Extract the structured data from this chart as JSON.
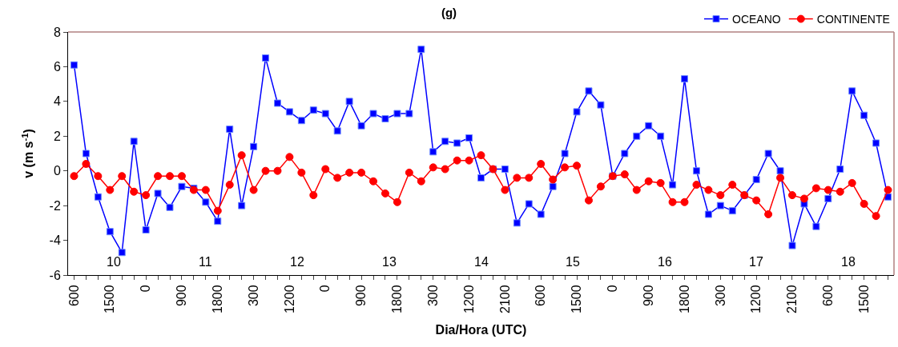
{
  "chart_data": {
    "type": "line",
    "title": "(g)",
    "xlabel": "Dia/Hora (UTC)",
    "ylabel": "v (m s$^{-1}$)",
    "categories": [
      "600",
      null,
      null,
      "1500",
      null,
      null,
      "0",
      null,
      null,
      "900",
      null,
      null,
      "1800",
      null,
      null,
      "300",
      null,
      null,
      "1200",
      null,
      null,
      "0",
      null,
      null,
      "900",
      null,
      null,
      "1800",
      null,
      null,
      "300",
      null,
      null,
      "1200",
      null,
      null,
      "2100",
      null,
      null,
      "600",
      null,
      null,
      "1500",
      null,
      null,
      "0",
      null,
      null,
      "900",
      null,
      null,
      "1800",
      null,
      null,
      "300",
      null,
      null,
      "1200",
      null,
      null,
      "2100",
      null,
      null,
      "600",
      null,
      null,
      "1500",
      null,
      null
    ],
    "series": [
      {
        "name": "OCEANO",
        "color": "#0000ff",
        "marker": "square",
        "values": [
          6.1,
          1.0,
          -1.5,
          -3.5,
          -4.7,
          1.7,
          -3.4,
          -1.3,
          -2.1,
          -0.9,
          -1.0,
          -1.8,
          -2.9,
          2.4,
          -2.0,
          1.4,
          6.5,
          3.9,
          3.4,
          2.9,
          3.5,
          3.3,
          2.3,
          4.0,
          2.6,
          3.3,
          3.0,
          3.3,
          3.3,
          7.0,
          1.1,
          1.7,
          1.6,
          1.9,
          -0.4,
          0.1,
          0.1,
          -3.0,
          -1.9,
          -2.5,
          -0.9,
          1.0,
          3.4,
          4.6,
          3.8,
          -0.3,
          1.0,
          2.0,
          2.6,
          2.0,
          -0.8,
          5.3,
          0.0,
          -2.5,
          -2.0,
          -2.3,
          -1.4,
          -0.5,
          1.0,
          0.0,
          -4.3,
          -1.9,
          -3.2,
          -1.6,
          0.1,
          4.6,
          3.2,
          1.6,
          -1.5
        ]
      },
      {
        "name": "CONTINENTE",
        "color": "#ff0000",
        "marker": "circle",
        "values": [
          -0.3,
          0.4,
          -0.3,
          -1.1,
          -0.3,
          -1.2,
          -1.4,
          -0.3,
          -0.3,
          -0.3,
          -1.1,
          -1.1,
          -2.3,
          -0.8,
          0.9,
          -1.1,
          0.0,
          0.0,
          0.8,
          -0.1,
          -1.4,
          0.1,
          -0.4,
          -0.1,
          -0.1,
          -0.6,
          -1.3,
          -1.8,
          -0.1,
          -0.6,
          0.2,
          0.1,
          0.6,
          0.6,
          0.9,
          0.1,
          -1.1,
          -0.4,
          -0.4,
          0.4,
          -0.5,
          0.2,
          0.3,
          -1.7,
          -0.9,
          -0.3,
          -0.2,
          -1.1,
          -0.6,
          -0.7,
          -1.8,
          -1.8,
          -0.8,
          -1.1,
          -1.4,
          -0.8,
          -1.4,
          -1.7,
          -2.5,
          -0.4,
          -1.4,
          -1.6,
          -1.0,
          -1.1,
          -1.2,
          -0.7,
          -1.9,
          -2.6,
          -1.1
        ]
      }
    ],
    "ylim": [
      -6,
      8
    ],
    "yticks": [
      -6,
      -4,
      -2,
      0,
      2,
      4,
      6,
      8
    ],
    "annotations": [
      "10",
      "11",
      "12",
      "13",
      "14",
      "15",
      "16",
      "17",
      "18"
    ],
    "legend": "top right",
    "line_style": "solid"
  }
}
